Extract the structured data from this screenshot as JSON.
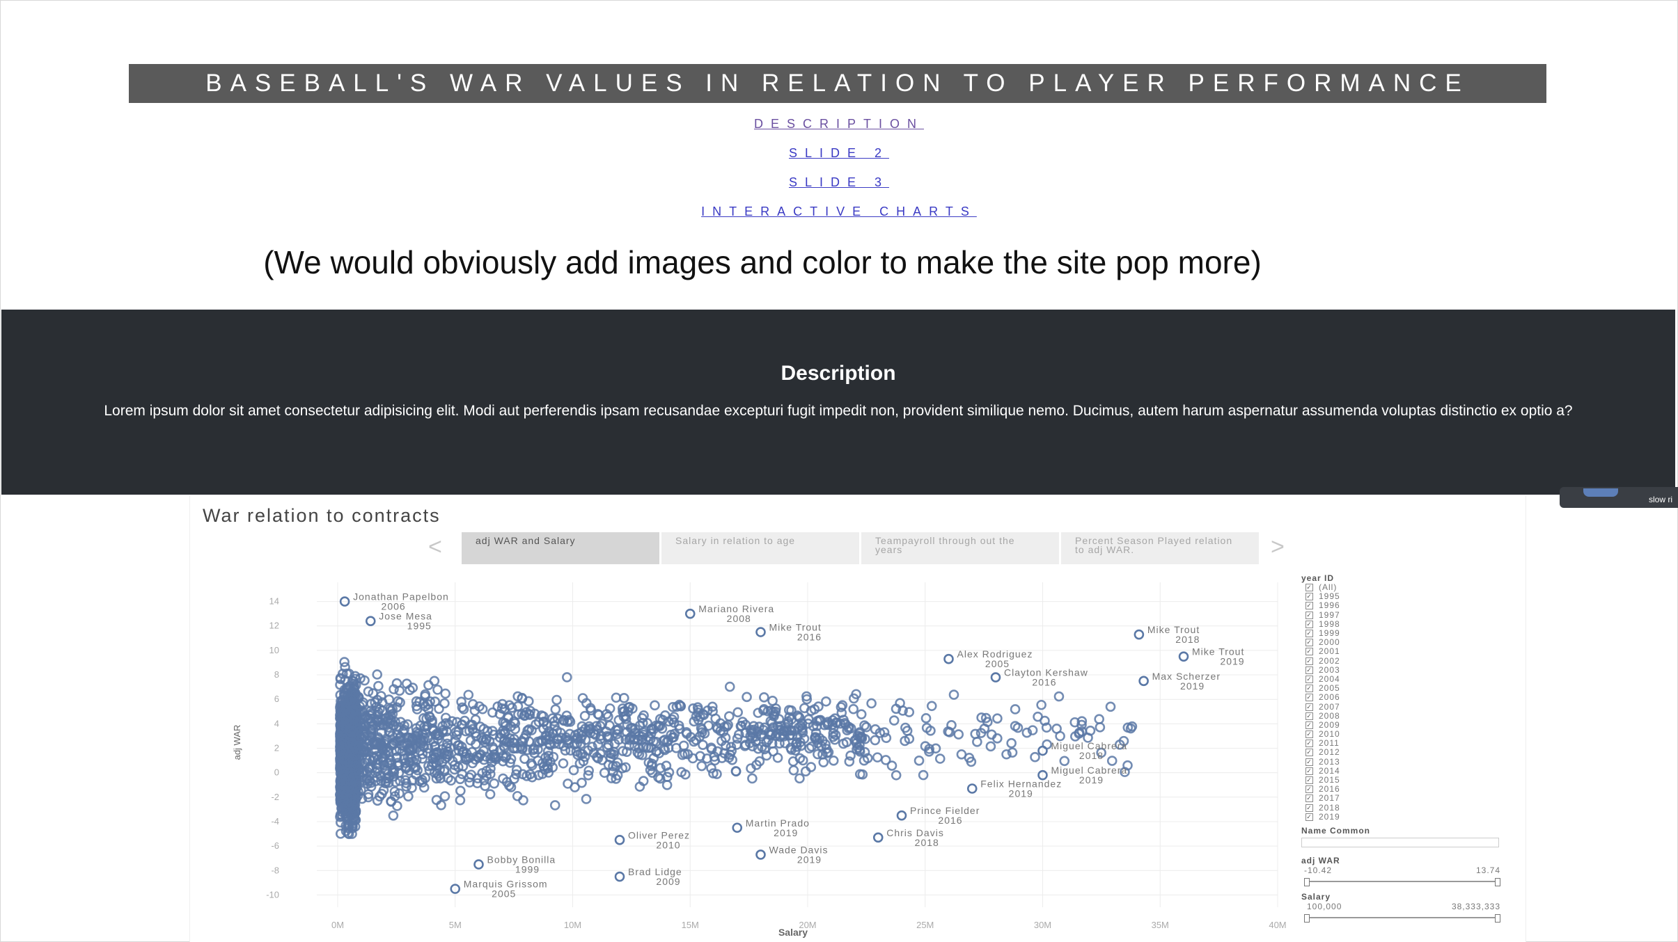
{
  "page": {
    "title": "BASEBALL'S WAR VALUES IN RELATION TO PLAYER PERFORMANCE",
    "nav": [
      "DESCRIPTION",
      "SLIDE 2",
      "SLIDE 3",
      "INTERACTIVE CHARTS"
    ],
    "note": "(We would obviously add images and color to make the site pop more)"
  },
  "description": {
    "heading": "Description",
    "body": "Lorem ipsum dolor sit amet consectetur adipisicing elit. Modi aut perferendis ipsam recusandae excepturi fugit impedit non, provident similique nemo. Ducimus, autem harum aspernatur assumenda voluptas distinctio ex optio a?"
  },
  "float_button": {
    "label": "slow ri"
  },
  "dashboard": {
    "title": "War relation to contracts",
    "tabs": [
      "adj WAR and Salary",
      "Salary in relation to age",
      "Teampayroll through out the years",
      "Percent Season Played relation to adj WAR."
    ],
    "prev_arrow": "<",
    "next_arrow": ">",
    "filters": {
      "year_label": "year ID",
      "years": [
        "(All)",
        "1995",
        "1996",
        "1997",
        "1998",
        "1999",
        "2000",
        "2001",
        "2002",
        "2003",
        "2004",
        "2005",
        "2006",
        "2007",
        "2008",
        "2009",
        "2010",
        "2011",
        "2012",
        "2013",
        "2014",
        "2015",
        "2016",
        "2017",
        "2018",
        "2019"
      ],
      "name_label": "Name Common",
      "war_label": "adj WAR",
      "war_min": "-10.42",
      "war_max": "13.74",
      "salary_label": "Salary",
      "salary_min": "100,000",
      "salary_max": "38,333,333"
    }
  },
  "colors": {
    "mark": "#5a78a6",
    "dark_band": "#2a2e33",
    "title_bar": "#5a5a5a"
  },
  "chart_data": {
    "type": "scatter",
    "xlabel": "Salary",
    "ylabel": "adj WAR",
    "xlim": [
      0,
      40000000
    ],
    "ylim": [
      -11,
      15
    ],
    "x_ticks": [
      "0M",
      "5M",
      "10M",
      "15M",
      "20M",
      "25M",
      "30M",
      "35M",
      "40M"
    ],
    "y_ticks": [
      "14",
      "12",
      "10",
      "8",
      "6",
      "4",
      "2",
      "0",
      "-2",
      "-4",
      "-6",
      "-8",
      "-10"
    ],
    "grid": true,
    "annotations": [
      {
        "name": "Jonathan Papelbon",
        "year": "2006",
        "x": 300000,
        "y": 14.0
      },
      {
        "name": "Jose Mesa",
        "year": "1995",
        "x": 1400000,
        "y": 12.4
      },
      {
        "name": "Mariano Rivera",
        "year": "2008",
        "x": 15000000,
        "y": 13.0
      },
      {
        "name": "Mike Trout",
        "year": "2016",
        "x": 18000000,
        "y": 11.5
      },
      {
        "name": "Mike Trout",
        "year": "2018",
        "x": 34100000,
        "y": 11.3
      },
      {
        "name": "Alex Rodriguez",
        "year": "2005",
        "x": 26000000,
        "y": 9.3
      },
      {
        "name": "Mike Trout",
        "year": "2019",
        "x": 36000000,
        "y": 9.5
      },
      {
        "name": "Clayton Kershaw",
        "year": "2016",
        "x": 28000000,
        "y": 7.8
      },
      {
        "name": "Max Scherzer",
        "year": "2019",
        "x": 34300000,
        "y": 7.5
      },
      {
        "name": "Miguel Cabrera",
        "year": "2018",
        "x": 30000000,
        "y": 1.8
      },
      {
        "name": "Miguel Cabrera",
        "year": "2019",
        "x": 30000000,
        "y": -0.2
      },
      {
        "name": "Felix Hernandez",
        "year": "2019",
        "x": 27000000,
        "y": -1.3
      },
      {
        "name": "Prince Fielder",
        "year": "2016",
        "x": 24000000,
        "y": -3.5
      },
      {
        "name": "Martin Prado",
        "year": "2019",
        "x": 17000000,
        "y": -4.5
      },
      {
        "name": "Chris Davis",
        "year": "2018",
        "x": 23000000,
        "y": -5.3
      },
      {
        "name": "Oliver Perez",
        "year": "2010",
        "x": 12000000,
        "y": -5.5
      },
      {
        "name": "Wade Davis",
        "year": "2019",
        "x": 18000000,
        "y": -6.7
      },
      {
        "name": "Bobby Bonilla",
        "year": "1999",
        "x": 6000000,
        "y": -7.5
      },
      {
        "name": "Brad Lidge",
        "year": "2009",
        "x": 12000000,
        "y": -8.5
      },
      {
        "name": "Marquis Grissom",
        "year": "2005",
        "x": 5000000,
        "y": -9.5
      }
    ]
  }
}
